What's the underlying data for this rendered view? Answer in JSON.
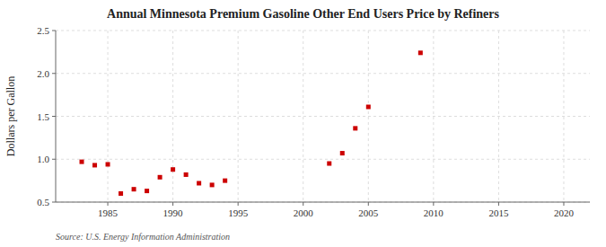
{
  "chart_data": {
    "type": "scatter",
    "title": "Annual Minnesota Premium Gasoline Other End Users Price by Refiners",
    "y_label": "Dollars per Gallon",
    "annotation": "Source: U.S. Energy Information Administration",
    "x": [
      1983,
      1984,
      1985,
      1986,
      1987,
      1988,
      1989,
      1990,
      1991,
      1992,
      1993,
      1994,
      2002,
      2003,
      2004,
      2005,
      2009
    ],
    "values": [
      0.97,
      0.93,
      0.94,
      0.6,
      0.65,
      0.63,
      0.79,
      0.88,
      0.82,
      0.72,
      0.7,
      0.75,
      0.95,
      1.07,
      1.36,
      1.61,
      2.24
    ],
    "color": "#cc0000",
    "marker": "square",
    "xlim": [
      1981,
      2022
    ],
    "ylim": [
      0.5,
      2.5
    ],
    "xticks": [
      1985,
      1990,
      1995,
      2000,
      2005,
      2010,
      2015,
      2020
    ],
    "yticks": [
      0.5,
      {
        "value": 1.0,
        "label": "1.0"
      },
      1.5,
      {
        "value": 2.0,
        "label": "2.0"
      },
      2.5
    ],
    "grid": true
  }
}
